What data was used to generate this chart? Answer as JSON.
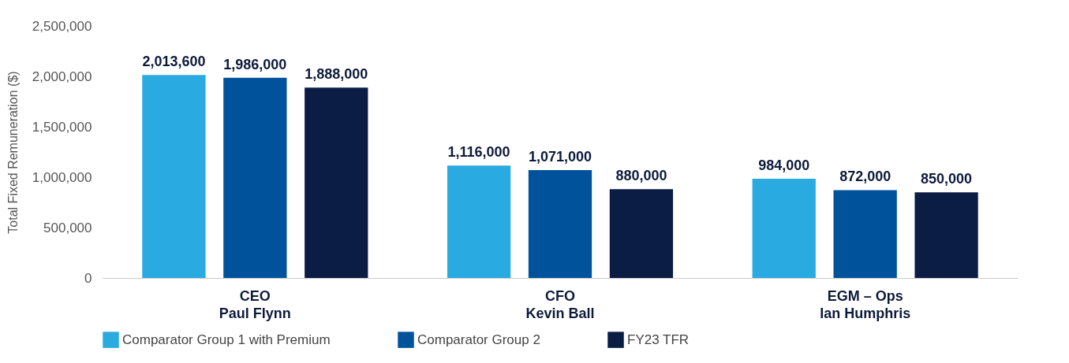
{
  "chart_data": {
    "type": "bar",
    "ylabel": "Total Fixed Remuneration ($)",
    "categories": [
      "CEO\nPaul Flynn",
      "CFO\nKevin Ball",
      "EGM – Ops\nIan Humphris"
    ],
    "series": [
      {
        "name": "Comparator Group 1 with Premium",
        "color": "#29abe2",
        "values": [
          2013600,
          1116000,
          984000
        ],
        "value_labels": [
          "2,013,600",
          "1,116,000",
          "984,000"
        ]
      },
      {
        "name": "Comparator Group 2",
        "color": "#00529b",
        "values": [
          1986000,
          1071000,
          872000
        ],
        "value_labels": [
          "1,986,000",
          "1,071,000",
          "872,000"
        ]
      },
      {
        "name": "FY23 TFR",
        "color": "#0b1d45",
        "values": [
          1888000,
          880000,
          850000
        ],
        "value_labels": [
          "1,888,000",
          "880,000",
          "850,000"
        ]
      }
    ],
    "ylim": [
      0,
      2500000
    ],
    "yticks": [
      0,
      {
        "value": 500000,
        "label": "500,000"
      },
      {
        "value": 1000000,
        "label": "1,000,000"
      },
      {
        "value": 1500000,
        "label": "1,500,000"
      },
      {
        "value": 2000000,
        "label": "2,000,000"
      },
      {
        "value": 2500000,
        "label": "2,500,000"
      }
    ],
    "grid": false,
    "legend": "bottom"
  }
}
